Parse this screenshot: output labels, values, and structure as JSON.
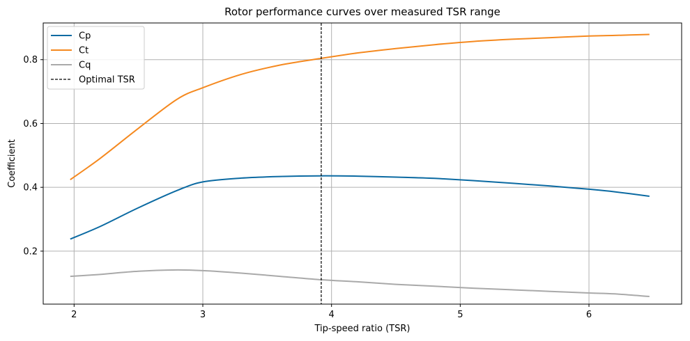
{
  "chart_data": {
    "type": "line",
    "title": "Rotor performance curves over measured TSR range",
    "xlabel": "Tip-speed ratio (TSR)",
    "ylabel": "Coefficient",
    "xlim": [
      1.76,
      6.72
    ],
    "ylim": [
      0.034,
      0.915
    ],
    "xticks": [
      2,
      3,
      4,
      5,
      6
    ],
    "yticks": [
      0.2,
      0.4,
      0.6,
      0.8
    ],
    "grid": true,
    "legend_position": "top-left",
    "series": [
      {
        "name": "Cp",
        "color": "#0b6aa2",
        "x": [
          1.97,
          2.2,
          2.5,
          2.8,
          3.0,
          3.3,
          3.6,
          3.9,
          4.2,
          4.5,
          4.8,
          5.1,
          5.4,
          5.7,
          6.0,
          6.2,
          6.47
        ],
        "y": [
          0.238,
          0.277,
          0.336,
          0.39,
          0.417,
          0.429,
          0.434,
          0.436,
          0.435,
          0.432,
          0.428,
          0.421,
          0.413,
          0.404,
          0.394,
          0.386,
          0.372
        ]
      },
      {
        "name": "Ct",
        "color": "#f5891f",
        "x": [
          1.97,
          2.2,
          2.5,
          2.8,
          3.0,
          3.3,
          3.6,
          3.9,
          4.2,
          4.5,
          4.8,
          5.1,
          5.4,
          5.7,
          6.0,
          6.2,
          6.47
        ],
        "y": [
          0.424,
          0.49,
          0.585,
          0.676,
          0.712,
          0.754,
          0.783,
          0.803,
          0.821,
          0.835,
          0.847,
          0.857,
          0.864,
          0.869,
          0.874,
          0.876,
          0.879
        ]
      },
      {
        "name": "Cq",
        "color": "#a9a9a9",
        "x": [
          1.97,
          2.2,
          2.5,
          2.8,
          3.0,
          3.3,
          3.6,
          3.9,
          4.2,
          4.5,
          4.8,
          5.1,
          5.4,
          5.7,
          6.0,
          6.2,
          6.47
        ],
        "y": [
          0.121,
          0.127,
          0.137,
          0.141,
          0.139,
          0.131,
          0.121,
          0.111,
          0.104,
          0.096,
          0.09,
          0.084,
          0.079,
          0.074,
          0.069,
          0.066,
          0.058
        ]
      }
    ],
    "vline": {
      "name": "Optimal TSR",
      "x": 3.92,
      "color": "#000000",
      "style": "dashed"
    }
  }
}
